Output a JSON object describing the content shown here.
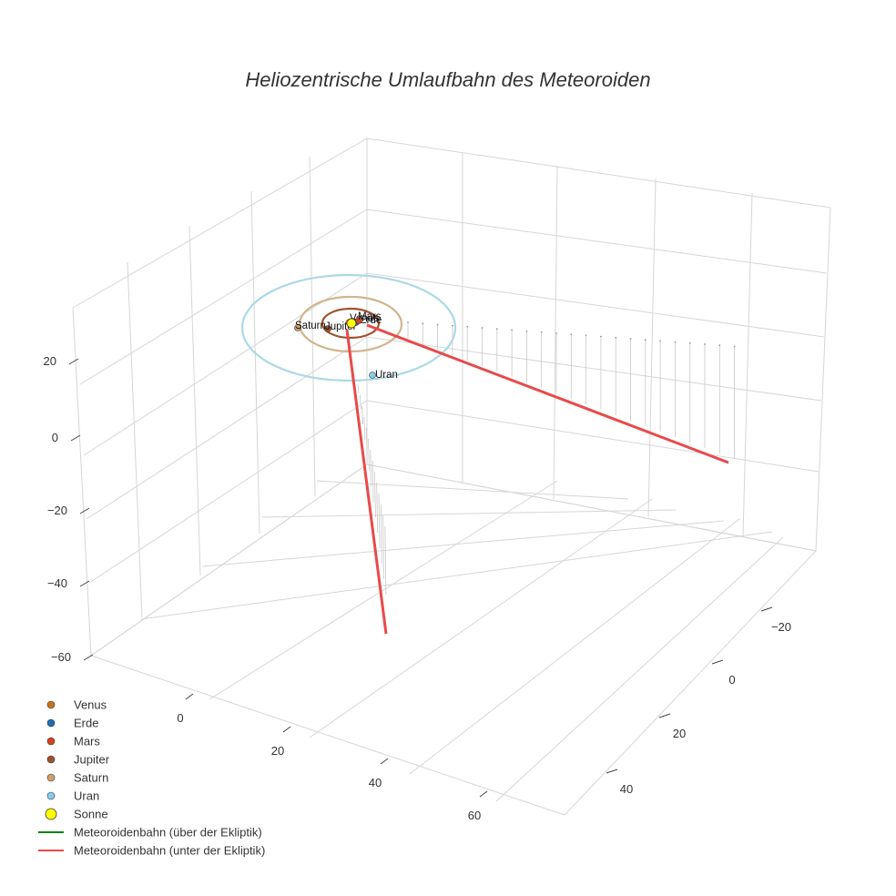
{
  "chart_data": {
    "type": "scatter3d",
    "title": "Heliozentrische Umlaufbahn des Meteoroiden",
    "axes": {
      "x": {
        "ticks": [
          "0",
          "20",
          "40",
          "60"
        ]
      },
      "y": {
        "ticks": [
          "−20",
          "0",
          "20",
          "40"
        ]
      },
      "z": {
        "ticks": [
          "−60",
          "−40",
          "−20",
          "0",
          "20"
        ]
      }
    },
    "planets": [
      {
        "name": "Venus",
        "color": "#c8741a",
        "label": "Venus"
      },
      {
        "name": "Erde",
        "color": "#1f6fb4",
        "label": "Erde"
      },
      {
        "name": "Mars",
        "color": "#d2451e",
        "label": "Mars"
      },
      {
        "name": "Jupiter",
        "color": "#a0522d",
        "label": "Jupiter"
      },
      {
        "name": "Saturn",
        "color": "#d2a06e",
        "label": "Saturn"
      },
      {
        "name": "Uran",
        "color": "#87ceeb",
        "label": "Uran"
      }
    ],
    "sun": {
      "name": "Sonne",
      "color": "#ffff00"
    },
    "orbit_colors": {
      "Jupiter": "#a0522d",
      "Saturn": "#d2b48c",
      "Uran": "#add8e6"
    },
    "meteoroid_colors": {
      "above": "#008000",
      "below": "#e84a4a"
    },
    "legend": [
      {
        "label": "Venus",
        "kind": "marker",
        "color": "#c8741a"
      },
      {
        "label": "Erde",
        "kind": "marker",
        "color": "#1f6fb4"
      },
      {
        "label": "Mars",
        "kind": "marker",
        "color": "#d2451e"
      },
      {
        "label": "Jupiter",
        "kind": "marker",
        "color": "#a0522d"
      },
      {
        "label": "Saturn",
        "kind": "marker",
        "color": "#d2a06e"
      },
      {
        "label": "Uran",
        "kind": "marker",
        "color": "#87ceeb"
      },
      {
        "label": "Sonne",
        "kind": "sun",
        "color": "#ffff00"
      },
      {
        "label": "Meteoroidenbahn (über der Ekliptik)",
        "kind": "line",
        "color": "#008000"
      },
      {
        "label": "Meteoroidenbahn (unter der Ekliptik)",
        "kind": "line",
        "color": "#e84a4a"
      }
    ]
  }
}
